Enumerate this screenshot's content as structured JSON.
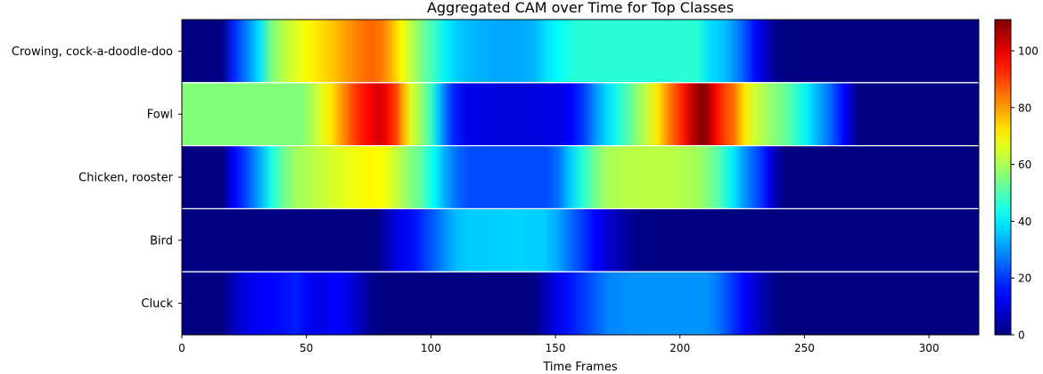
{
  "chart_data": {
    "type": "heatmap",
    "title": "Aggregated CAM over Time for Top Classes",
    "xlabel": "Time Frames",
    "ylabel": "",
    "xlim": [
      0,
      320
    ],
    "x_ticks": [
      0,
      50,
      100,
      150,
      200,
      250,
      300
    ],
    "colorbar": {
      "colormap": "jet",
      "range": [
        0,
        111
      ],
      "ticks": [
        0,
        20,
        40,
        60,
        80,
        100
      ]
    },
    "rows": [
      {
        "label": "Crowing, cock-a-doodle-doo",
        "profile": [
          [
            0,
            0
          ],
          [
            16,
            0
          ],
          [
            21,
            18
          ],
          [
            26,
            28
          ],
          [
            31,
            38
          ],
          [
            36,
            55
          ],
          [
            41,
            62
          ],
          [
            46,
            66
          ],
          [
            51,
            70
          ],
          [
            56,
            73
          ],
          [
            61,
            76
          ],
          [
            66,
            80
          ],
          [
            71,
            84
          ],
          [
            76,
            86
          ],
          [
            80,
            84
          ],
          [
            84,
            78
          ],
          [
            88,
            70
          ],
          [
            92,
            62
          ],
          [
            96,
            55
          ],
          [
            101,
            48
          ],
          [
            106,
            40
          ],
          [
            111,
            36
          ],
          [
            116,
            34
          ],
          [
            126,
            32
          ],
          [
            136,
            32
          ],
          [
            142,
            34
          ],
          [
            146,
            38
          ],
          [
            151,
            42
          ],
          [
            156,
            45
          ],
          [
            161,
            46
          ],
          [
            171,
            46
          ],
          [
            181,
            46
          ],
          [
            191,
            46
          ],
          [
            201,
            46
          ],
          [
            207,
            46
          ],
          [
            212,
            38
          ],
          [
            218,
            35
          ],
          [
            225,
            25
          ],
          [
            230,
            15
          ],
          [
            234,
            8
          ],
          [
            238,
            2
          ],
          [
            243,
            0
          ],
          [
            320,
            0
          ]
        ]
      },
      {
        "label": "Fowl",
        "profile": [
          [
            0,
            56
          ],
          [
            48,
            56
          ],
          [
            52,
            60
          ],
          [
            56,
            66
          ],
          [
            60,
            72
          ],
          [
            64,
            80
          ],
          [
            68,
            88
          ],
          [
            72,
            94
          ],
          [
            76,
            98
          ],
          [
            79,
            102
          ],
          [
            82,
            98
          ],
          [
            86,
            90
          ],
          [
            89,
            78
          ],
          [
            92,
            66
          ],
          [
            96,
            58
          ],
          [
            100,
            48
          ],
          [
            103,
            36
          ],
          [
            106,
            26
          ],
          [
            109,
            18
          ],
          [
            114,
            12
          ],
          [
            126,
            10
          ],
          [
            141,
            10
          ],
          [
            151,
            11
          ],
          [
            156,
            14
          ],
          [
            161,
            20
          ],
          [
            166,
            30
          ],
          [
            171,
            38
          ],
          [
            176,
            46
          ],
          [
            181,
            54
          ],
          [
            186,
            62
          ],
          [
            191,
            72
          ],
          [
            196,
            84
          ],
          [
            201,
            94
          ],
          [
            205,
            104
          ],
          [
            208,
            110
          ],
          [
            211,
            108
          ],
          [
            214,
            98
          ],
          [
            218,
            90
          ],
          [
            222,
            84
          ],
          [
            226,
            72
          ],
          [
            230,
            64
          ],
          [
            236,
            58
          ],
          [
            241,
            54
          ],
          [
            246,
            48
          ],
          [
            251,
            40
          ],
          [
            256,
            32
          ],
          [
            261,
            24
          ],
          [
            266,
            14
          ],
          [
            269,
            6
          ],
          [
            272,
            0
          ],
          [
            320,
            0
          ]
        ]
      },
      {
        "label": "Chicken, rooster",
        "profile": [
          [
            0,
            0
          ],
          [
            16,
            0
          ],
          [
            21,
            14
          ],
          [
            26,
            22
          ],
          [
            31,
            32
          ],
          [
            36,
            44
          ],
          [
            41,
            54
          ],
          [
            46,
            59
          ],
          [
            56,
            63
          ],
          [
            66,
            67
          ],
          [
            76,
            70
          ],
          [
            81,
            69
          ],
          [
            86,
            63
          ],
          [
            91,
            57
          ],
          [
            96,
            52
          ],
          [
            101,
            42
          ],
          [
            106,
            32
          ],
          [
            111,
            25
          ],
          [
            116,
            22
          ],
          [
            146,
            22
          ],
          [
            151,
            26
          ],
          [
            156,
            36
          ],
          [
            161,
            46
          ],
          [
            166,
            54
          ],
          [
            171,
            60
          ],
          [
            181,
            62
          ],
          [
            196,
            62
          ],
          [
            206,
            60
          ],
          [
            211,
            56
          ],
          [
            216,
            50
          ],
          [
            221,
            40
          ],
          [
            226,
            30
          ],
          [
            231,
            22
          ],
          [
            236,
            12
          ],
          [
            239,
            4
          ],
          [
            242,
            0
          ],
          [
            320,
            0
          ]
        ]
      },
      {
        "label": "Bird",
        "profile": [
          [
            0,
            0
          ],
          [
            78,
            0
          ],
          [
            84,
            8
          ],
          [
            88,
            12
          ],
          [
            94,
            16
          ],
          [
            101,
            24
          ],
          [
            106,
            30
          ],
          [
            111,
            35
          ],
          [
            116,
            36
          ],
          [
            136,
            37
          ],
          [
            146,
            36
          ],
          [
            151,
            32
          ],
          [
            156,
            26
          ],
          [
            161,
            20
          ],
          [
            166,
            14
          ],
          [
            171,
            9
          ],
          [
            176,
            5
          ],
          [
            181,
            2
          ],
          [
            186,
            0
          ],
          [
            320,
            0
          ]
        ]
      },
      {
        "label": "Cluck",
        "profile": [
          [
            0,
            0
          ],
          [
            16,
            0
          ],
          [
            22,
            8
          ],
          [
            28,
            12
          ],
          [
            34,
            14
          ],
          [
            40,
            15
          ],
          [
            46,
            17
          ],
          [
            51,
            13
          ],
          [
            56,
            11
          ],
          [
            61,
            14
          ],
          [
            66,
            12
          ],
          [
            71,
            7
          ],
          [
            76,
            2
          ],
          [
            81,
            0
          ],
          [
            141,
            0
          ],
          [
            146,
            6
          ],
          [
            151,
            12
          ],
          [
            156,
            16
          ],
          [
            161,
            20
          ],
          [
            166,
            24
          ],
          [
            171,
            28
          ],
          [
            181,
            30
          ],
          [
            191,
            30
          ],
          [
            201,
            30
          ],
          [
            211,
            30
          ],
          [
            216,
            26
          ],
          [
            221,
            20
          ],
          [
            226,
            14
          ],
          [
            231,
            8
          ],
          [
            236,
            3
          ],
          [
            240,
            0
          ],
          [
            320,
            0
          ]
        ]
      }
    ]
  }
}
